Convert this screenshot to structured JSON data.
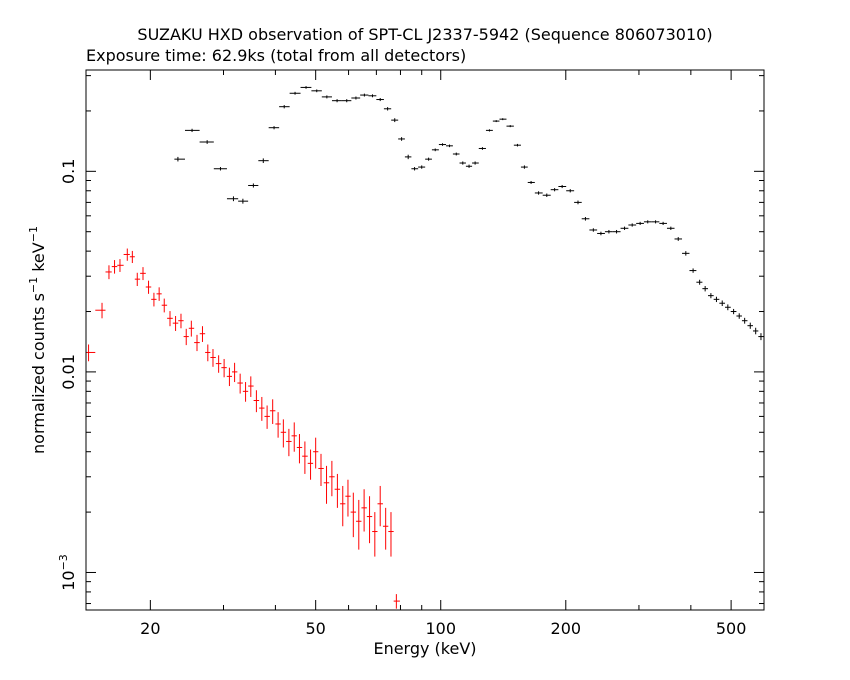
{
  "chart_data": {
    "type": "scatter",
    "title": "SUZAKU HXD observation of SPT-CL J2337-5942 (Sequence 806073010)",
    "subtitle": "Exposure time: 62.9ks (total from all detectors)",
    "xlabel": "Energy (keV)",
    "ylabel_main": "normalized counts s",
    "ylabel_sup1": "−1",
    "ylabel_mid": " keV",
    "ylabel_sup2": "−1",
    "xscale": "log",
    "yscale": "log",
    "xlim": [
      14,
      600
    ],
    "ylim": [
      0.00065,
      0.32
    ],
    "xticks": [
      20,
      50,
      100,
      200,
      500
    ],
    "yticks": [
      {
        "value": 0.1,
        "label": "0.1"
      },
      {
        "value": 0.01,
        "label": "0.01"
      },
      {
        "value": 0.001,
        "label": "10",
        "sup": "−3"
      }
    ],
    "series": [
      {
        "color": "#ff0000",
        "points": [
          [
            14.2,
            0.0125,
            0.0012
          ],
          [
            15.3,
            0.0203,
            0.0018
          ],
          [
            15.9,
            0.0315,
            0.0025
          ],
          [
            16.4,
            0.0335,
            0.0026
          ],
          [
            16.9,
            0.034,
            0.0025
          ],
          [
            17.6,
            0.0385,
            0.0027
          ],
          [
            18.1,
            0.0375,
            0.0026
          ],
          [
            18.6,
            0.029,
            0.0022
          ],
          [
            19.2,
            0.031,
            0.0023
          ],
          [
            19.8,
            0.0265,
            0.002
          ],
          [
            20.4,
            0.023,
            0.0018
          ],
          [
            21.0,
            0.0245,
            0.0019
          ],
          [
            21.6,
            0.0215,
            0.0017
          ],
          [
            22.3,
            0.0185,
            0.0016
          ],
          [
            23.0,
            0.0175,
            0.0015
          ],
          [
            23.7,
            0.018,
            0.0015
          ],
          [
            24.4,
            0.015,
            0.0014
          ],
          [
            25.1,
            0.0165,
            0.0015
          ],
          [
            25.9,
            0.014,
            0.0013
          ],
          [
            26.7,
            0.0155,
            0.0014
          ],
          [
            27.5,
            0.0125,
            0.0012
          ],
          [
            28.3,
            0.0118,
            0.0012
          ],
          [
            29.2,
            0.011,
            0.0011
          ],
          [
            30.1,
            0.0105,
            0.0011
          ],
          [
            31.0,
            0.0095,
            0.001
          ],
          [
            31.9,
            0.01,
            0.0011
          ],
          [
            32.9,
            0.0088,
            0.001
          ],
          [
            33.9,
            0.008,
            0.0009
          ],
          [
            34.9,
            0.0085,
            0.001
          ],
          [
            36.0,
            0.0072,
            0.0009
          ],
          [
            37.1,
            0.0066,
            0.0009
          ],
          [
            38.2,
            0.006,
            0.0008
          ],
          [
            39.4,
            0.0064,
            0.0009
          ],
          [
            40.6,
            0.0055,
            0.0008
          ],
          [
            41.8,
            0.005,
            0.0008
          ],
          [
            43.1,
            0.0045,
            0.0007
          ],
          [
            44.4,
            0.0048,
            0.0008
          ],
          [
            45.7,
            0.0042,
            0.0007
          ],
          [
            47.1,
            0.0038,
            0.0007
          ],
          [
            48.6,
            0.0035,
            0.0006
          ],
          [
            50.0,
            0.004,
            0.0007
          ],
          [
            51.5,
            0.0033,
            0.0006
          ],
          [
            53.1,
            0.0028,
            0.0006
          ],
          [
            54.7,
            0.003,
            0.0006
          ],
          [
            56.4,
            0.0026,
            0.0005
          ],
          [
            58.1,
            0.0022,
            0.0005
          ],
          [
            59.8,
            0.0024,
            0.0005
          ],
          [
            61.6,
            0.002,
            0.0005
          ],
          [
            63.5,
            0.0018,
            0.0005
          ],
          [
            65.4,
            0.0021,
            0.0005
          ],
          [
            67.4,
            0.0019,
            0.0005
          ],
          [
            69.4,
            0.0016,
            0.0004
          ],
          [
            71.5,
            0.0022,
            0.0005
          ],
          [
            73.7,
            0.0017,
            0.0004
          ],
          [
            75.9,
            0.0016,
            0.0004
          ],
          [
            78.2,
            0.00072,
            6e-05
          ]
        ]
      },
      {
        "color": "#000000",
        "points": [
          [
            23.3,
            0.115,
            0.003
          ],
          [
            25.2,
            0.16,
            0.003
          ],
          [
            27.4,
            0.14,
            0.003
          ],
          [
            29.5,
            0.103,
            0.002
          ],
          [
            31.7,
            0.073,
            0.002
          ],
          [
            33.4,
            0.071,
            0.002
          ],
          [
            35.4,
            0.085,
            0.002
          ],
          [
            37.4,
            0.113,
            0.003
          ],
          [
            39.7,
            0.165,
            0.003
          ],
          [
            42.0,
            0.21,
            0.004
          ],
          [
            44.6,
            0.245,
            0.004
          ],
          [
            47.4,
            0.262,
            0.004
          ],
          [
            50.3,
            0.252,
            0.004
          ],
          [
            53.2,
            0.235,
            0.004
          ],
          [
            56.3,
            0.225,
            0.004
          ],
          [
            59.4,
            0.225,
            0.004
          ],
          [
            62.5,
            0.232,
            0.004
          ],
          [
            65.5,
            0.24,
            0.004
          ],
          [
            68.5,
            0.238,
            0.004
          ],
          [
            71.5,
            0.228,
            0.004
          ],
          [
            74.5,
            0.205,
            0.004
          ],
          [
            77.5,
            0.18,
            0.004
          ],
          [
            80.5,
            0.145,
            0.003
          ],
          [
            83.5,
            0.118,
            0.003
          ],
          [
            86.5,
            0.103,
            0.002
          ],
          [
            90.0,
            0.105,
            0.002
          ],
          [
            93.5,
            0.115,
            0.002
          ],
          [
            97.0,
            0.128,
            0.002
          ],
          [
            101.0,
            0.136,
            0.002
          ],
          [
            105.0,
            0.134,
            0.002
          ],
          [
            109.0,
            0.122,
            0.002
          ],
          [
            113.0,
            0.11,
            0.002
          ],
          [
            117.0,
            0.106,
            0.002
          ],
          [
            121.0,
            0.11,
            0.002
          ],
          [
            126.0,
            0.13,
            0.002
          ],
          [
            131.0,
            0.16,
            0.002
          ],
          [
            136.0,
            0.178,
            0.002
          ],
          [
            141.0,
            0.182,
            0.002
          ],
          [
            147.0,
            0.168,
            0.002
          ],
          [
            153.0,
            0.135,
            0.002
          ],
          [
            159.0,
            0.105,
            0.002
          ],
          [
            165.0,
            0.088,
            0.0015
          ],
          [
            172.0,
            0.078,
            0.0015
          ],
          [
            180.0,
            0.076,
            0.0015
          ],
          [
            188.0,
            0.081,
            0.0015
          ],
          [
            196.0,
            0.084,
            0.0015
          ],
          [
            205.0,
            0.08,
            0.0015
          ],
          [
            214.0,
            0.07,
            0.0015
          ],
          [
            223.0,
            0.058,
            0.0012
          ],
          [
            233.0,
            0.051,
            0.001
          ],
          [
            243.0,
            0.049,
            0.001
          ],
          [
            254.0,
            0.05,
            0.001
          ],
          [
            265.0,
            0.05,
            0.001
          ],
          [
            277.0,
            0.052,
            0.001
          ],
          [
            289.0,
            0.054,
            0.001
          ],
          [
            302.0,
            0.055,
            0.001
          ],
          [
            315.0,
            0.056,
            0.001
          ],
          [
            329.0,
            0.056,
            0.001
          ],
          [
            343.0,
            0.055,
            0.001
          ],
          [
            358.0,
            0.052,
            0.001
          ],
          [
            373.0,
            0.046,
            0.001
          ],
          [
            389.0,
            0.039,
            0.001
          ],
          [
            405.0,
            0.032,
            0.0008
          ],
          [
            420.0,
            0.028,
            0.0008
          ],
          [
            433.0,
            0.026,
            0.0008
          ],
          [
            447.0,
            0.024,
            0.0007
          ],
          [
            461.0,
            0.023,
            0.0007
          ],
          [
            476.0,
            0.022,
            0.0007
          ],
          [
            491.0,
            0.021,
            0.0007
          ],
          [
            507.0,
            0.02,
            0.0006
          ],
          [
            523.0,
            0.019,
            0.0006
          ],
          [
            539.0,
            0.018,
            0.0006
          ],
          [
            556.0,
            0.017,
            0.0006
          ],
          [
            573.0,
            0.016,
            0.0006
          ],
          [
            590.0,
            0.015,
            0.0006
          ]
        ]
      }
    ]
  }
}
